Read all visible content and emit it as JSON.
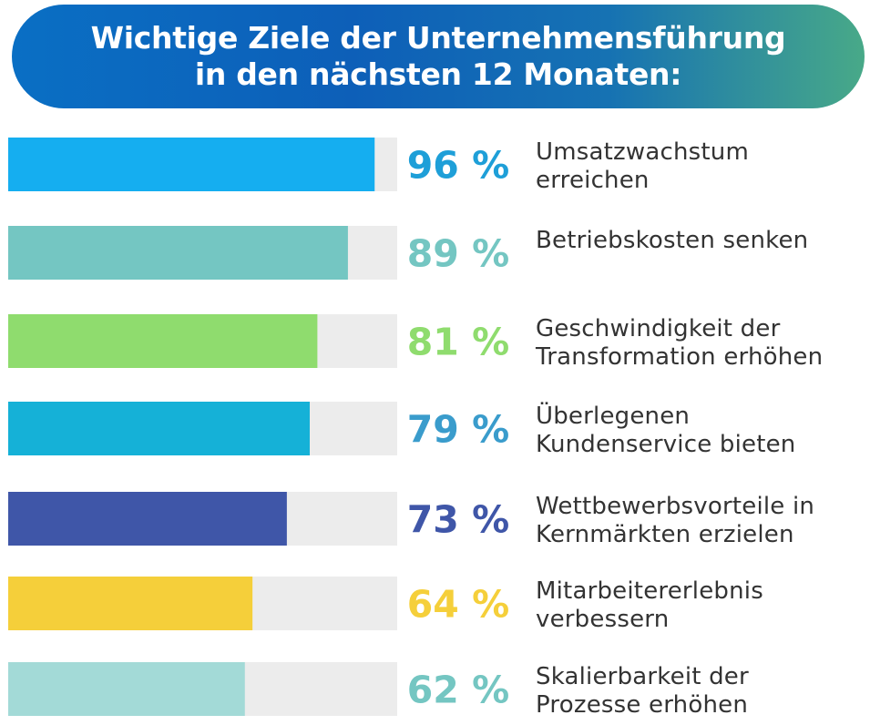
{
  "header": {
    "title_line1": "Wichtige Ziele der Unternehmensführung",
    "title_line2": "in den nächsten 12 Monaten:"
  },
  "chart_data": {
    "type": "bar",
    "orientation": "horizontal",
    "title": "Wichtige Ziele der Unternehmensführung in den nächsten 12 Monaten:",
    "xlim": [
      0,
      100
    ],
    "grid": false,
    "legend": "none",
    "unit": "%",
    "categories": [
      [
        "Umsatzwachstum",
        "erreichen"
      ],
      [
        "Betriebskosten senken"
      ],
      [
        "Geschwindigkeit der",
        "Transformation erhöhen"
      ],
      [
        "Überlegenen",
        "Kundenservice bieten"
      ],
      [
        "Wettbewerbsvorteile in",
        "Kernmärkten erzielen"
      ],
      [
        "Mitarbeitererlebnis",
        "verbessern"
      ],
      [
        "Skalierbarkeit der",
        "Prozesse erhöhen"
      ]
    ],
    "values": [
      96,
      89,
      81,
      79,
      73,
      64,
      62
    ],
    "value_labels": [
      "96 %",
      "89 %",
      "81 %",
      "79 %",
      "73 %",
      "64 %",
      "62 %"
    ],
    "bar_colors": [
      "#15aef0",
      "#74c6c2",
      "#8fdc6e",
      "#15b1d7",
      "#3f56a8",
      "#f5cf3a",
      "#a3dad7"
    ],
    "label_colors": [
      "#1e9fd8",
      "#74c6c2",
      "#8fdc6e",
      "#3a9ccc",
      "#3f56a8",
      "#f5cf3a",
      "#74c6c2"
    ],
    "track_color": "#ececec"
  }
}
